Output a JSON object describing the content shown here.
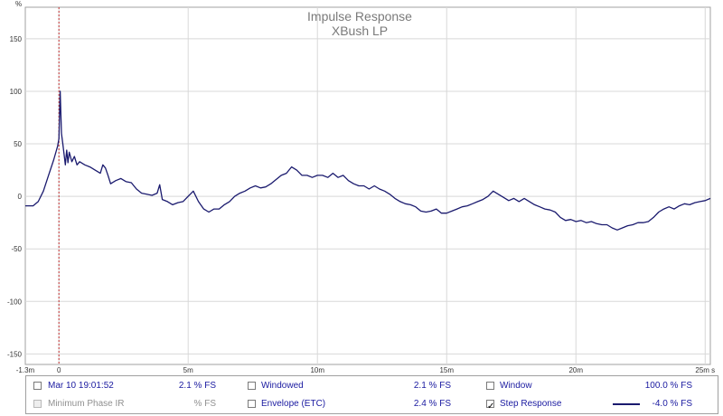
{
  "chart_data": {
    "type": "line",
    "title": "Impulse Response",
    "subtitle": "XBush LP",
    "ylabel": "%",
    "xlabel": "",
    "x_unit": "s",
    "ylim": [
      -160,
      180
    ],
    "xlim": [
      -0.0013,
      0.0252
    ],
    "y_ticks": [
      150,
      100,
      50,
      0,
      -50,
      -100,
      -150
    ],
    "y_tick_labels": [
      "150",
      "100",
      "50",
      "0",
      "-50",
      "-100",
      "-150"
    ],
    "x_ticks": [
      -0.0013,
      0,
      0.005,
      0.01,
      0.015,
      0.02,
      0.025
    ],
    "x_tick_labels": [
      "-1.3m",
      "0",
      "5m",
      "10m",
      "15m",
      "20m",
      "25m s"
    ],
    "grid": true,
    "marker_x": 0,
    "series": [
      {
        "name": "Step Response",
        "color": "#1a1a6e",
        "points": [
          [
            -0.0013,
            -9
          ],
          [
            -0.001,
            -9
          ],
          [
            -0.0008,
            -5
          ],
          [
            -0.0006,
            5
          ],
          [
            -0.0004,
            20
          ],
          [
            -0.0002,
            35
          ],
          [
            -5e-05,
            48
          ],
          [
            0,
            55
          ],
          [
            5e-05,
            100
          ],
          [
            0.0001,
            60
          ],
          [
            0.00015,
            50
          ],
          [
            0.0002,
            40
          ],
          [
            0.00025,
            30
          ],
          [
            0.0003,
            44
          ],
          [
            0.00035,
            32
          ],
          [
            0.0004,
            42
          ],
          [
            0.0005,
            33
          ],
          [
            0.0006,
            38
          ],
          [
            0.0007,
            30
          ],
          [
            0.0008,
            33
          ],
          [
            0.001,
            30
          ],
          [
            0.0012,
            28
          ],
          [
            0.0014,
            25
          ],
          [
            0.0016,
            22
          ],
          [
            0.0017,
            30
          ],
          [
            0.0018,
            27
          ],
          [
            0.0019,
            20
          ],
          [
            0.002,
            12
          ],
          [
            0.0022,
            15
          ],
          [
            0.0024,
            17
          ],
          [
            0.0026,
            14
          ],
          [
            0.0028,
            13
          ],
          [
            0.003,
            7
          ],
          [
            0.0032,
            3
          ],
          [
            0.0034,
            2
          ],
          [
            0.0036,
            1
          ],
          [
            0.0038,
            3
          ],
          [
            0.0039,
            11
          ],
          [
            0.004,
            -3
          ],
          [
            0.0042,
            -5
          ],
          [
            0.0044,
            -8
          ],
          [
            0.0046,
            -6
          ],
          [
            0.0048,
            -5
          ],
          [
            0.005,
            0
          ],
          [
            0.0052,
            5
          ],
          [
            0.0054,
            -5
          ],
          [
            0.0056,
            -12
          ],
          [
            0.0058,
            -15
          ],
          [
            0.006,
            -12
          ],
          [
            0.0062,
            -12
          ],
          [
            0.0064,
            -8
          ],
          [
            0.0066,
            -5
          ],
          [
            0.0068,
            0
          ],
          [
            0.007,
            3
          ],
          [
            0.0072,
            5
          ],
          [
            0.0074,
            8
          ],
          [
            0.0076,
            10
          ],
          [
            0.0078,
            8
          ],
          [
            0.008,
            9
          ],
          [
            0.0082,
            12
          ],
          [
            0.0084,
            16
          ],
          [
            0.0086,
            20
          ],
          [
            0.0088,
            22
          ],
          [
            0.009,
            28
          ],
          [
            0.0092,
            25
          ],
          [
            0.0094,
            20
          ],
          [
            0.0096,
            20
          ],
          [
            0.0098,
            18
          ],
          [
            0.01,
            20
          ],
          [
            0.0102,
            20
          ],
          [
            0.0104,
            18
          ],
          [
            0.0106,
            22
          ],
          [
            0.0108,
            18
          ],
          [
            0.011,
            20
          ],
          [
            0.0112,
            15
          ],
          [
            0.0114,
            12
          ],
          [
            0.0116,
            10
          ],
          [
            0.0118,
            10
          ],
          [
            0.012,
            7
          ],
          [
            0.0122,
            10
          ],
          [
            0.0124,
            7
          ],
          [
            0.0126,
            5
          ],
          [
            0.0128,
            2
          ],
          [
            0.013,
            -2
          ],
          [
            0.0132,
            -5
          ],
          [
            0.0134,
            -7
          ],
          [
            0.0136,
            -8
          ],
          [
            0.0138,
            -10
          ],
          [
            0.014,
            -14
          ],
          [
            0.0142,
            -15
          ],
          [
            0.0144,
            -14
          ],
          [
            0.0146,
            -12
          ],
          [
            0.0148,
            -16
          ],
          [
            0.015,
            -16
          ],
          [
            0.0152,
            -14
          ],
          [
            0.0154,
            -12
          ],
          [
            0.0156,
            -10
          ],
          [
            0.0158,
            -9
          ],
          [
            0.016,
            -7
          ],
          [
            0.0162,
            -5
          ],
          [
            0.0164,
            -3
          ],
          [
            0.0166,
            0
          ],
          [
            0.0168,
            5
          ],
          [
            0.017,
            2
          ],
          [
            0.0172,
            -1
          ],
          [
            0.0174,
            -4
          ],
          [
            0.0176,
            -2
          ],
          [
            0.0178,
            -5
          ],
          [
            0.018,
            -2
          ],
          [
            0.0182,
            -5
          ],
          [
            0.0184,
            -8
          ],
          [
            0.0186,
            -10
          ],
          [
            0.0188,
            -12
          ],
          [
            0.019,
            -13
          ],
          [
            0.0192,
            -15
          ],
          [
            0.0194,
            -20
          ],
          [
            0.0196,
            -23
          ],
          [
            0.0198,
            -22
          ],
          [
            0.02,
            -24
          ],
          [
            0.0202,
            -23
          ],
          [
            0.0204,
            -25
          ],
          [
            0.0206,
            -24
          ],
          [
            0.0208,
            -26
          ],
          [
            0.021,
            -27
          ],
          [
            0.0212,
            -27
          ],
          [
            0.0214,
            -30
          ],
          [
            0.0216,
            -32
          ],
          [
            0.0218,
            -30
          ],
          [
            0.022,
            -28
          ],
          [
            0.0222,
            -27
          ],
          [
            0.0224,
            -25
          ],
          [
            0.0226,
            -25
          ],
          [
            0.0228,
            -24
          ],
          [
            0.023,
            -20
          ],
          [
            0.0232,
            -15
          ],
          [
            0.0234,
            -12
          ],
          [
            0.0236,
            -10
          ],
          [
            0.0238,
            -12
          ],
          [
            0.024,
            -9
          ],
          [
            0.0242,
            -7
          ],
          [
            0.0244,
            -8
          ],
          [
            0.0246,
            -6
          ],
          [
            0.0248,
            -5
          ],
          [
            0.025,
            -4
          ],
          [
            0.0252,
            -2
          ]
        ]
      }
    ]
  },
  "legend": {
    "rows": [
      {
        "cells": [
          {
            "label": "Mar 10 19:01:52",
            "value": "2.1 % FS",
            "checked": false,
            "disabled": false
          },
          {
            "label": "Windowed",
            "value": "2.1 % FS",
            "checked": false,
            "disabled": false
          },
          {
            "label": "Window",
            "value": "100.0 % FS",
            "checked": false,
            "disabled": false
          }
        ]
      },
      {
        "cells": [
          {
            "label": "Minimum Phase IR",
            "value": "% FS",
            "checked": false,
            "disabled": true
          },
          {
            "label": "Envelope (ETC)",
            "value": "2.4 % FS",
            "checked": false,
            "disabled": false
          },
          {
            "label": "Step Response",
            "value": "-4.0 % FS",
            "checked": true,
            "disabled": false,
            "swatch": true
          }
        ]
      }
    ]
  }
}
